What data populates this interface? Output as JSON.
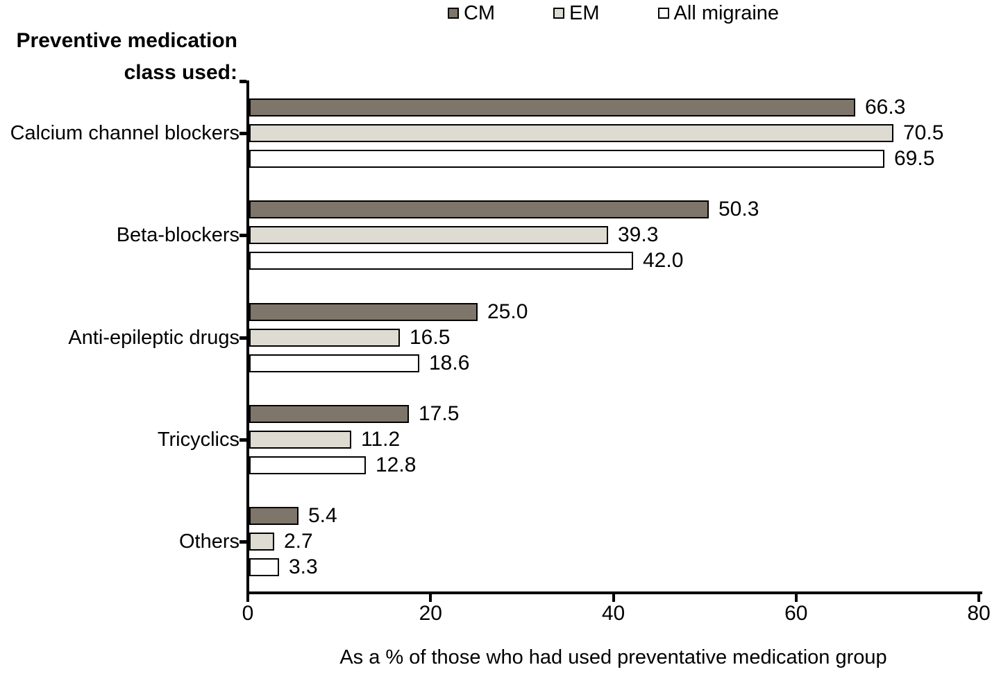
{
  "figure": {
    "title_line1": "Preventive medication",
    "title_line2": "class used:"
  },
  "chart_data": {
    "type": "bar",
    "orientation": "horizontal",
    "title": "Preventive medication class used:",
    "categories": [
      "Calcium channel blockers",
      "Beta-blockers",
      "Anti-epileptic drugs",
      "Tricyclics",
      "Others"
    ],
    "series": [
      {
        "name": "CM",
        "color": "#7E766A",
        "values": [
          66.3,
          50.3,
          25.0,
          17.5,
          5.4
        ]
      },
      {
        "name": "EM",
        "color": "#DEDBD2",
        "values": [
          70.5,
          39.3,
          16.5,
          11.2,
          2.7
        ]
      },
      {
        "name": "All migraine",
        "color": "#FFFFFF",
        "values": [
          69.5,
          42.0,
          18.6,
          12.8,
          3.3
        ]
      }
    ],
    "xlabel": "As a % of those who had used preventative medication group",
    "xlim": [
      0,
      80
    ],
    "xticks": [
      0,
      20,
      40,
      60,
      80
    ],
    "grid": false,
    "legend_position": "top",
    "value_labels": true,
    "value_label_decimals": 1,
    "bar_border_color": "#000000",
    "axis_color": "#000000",
    "background_color": "#FFFFFF"
  }
}
